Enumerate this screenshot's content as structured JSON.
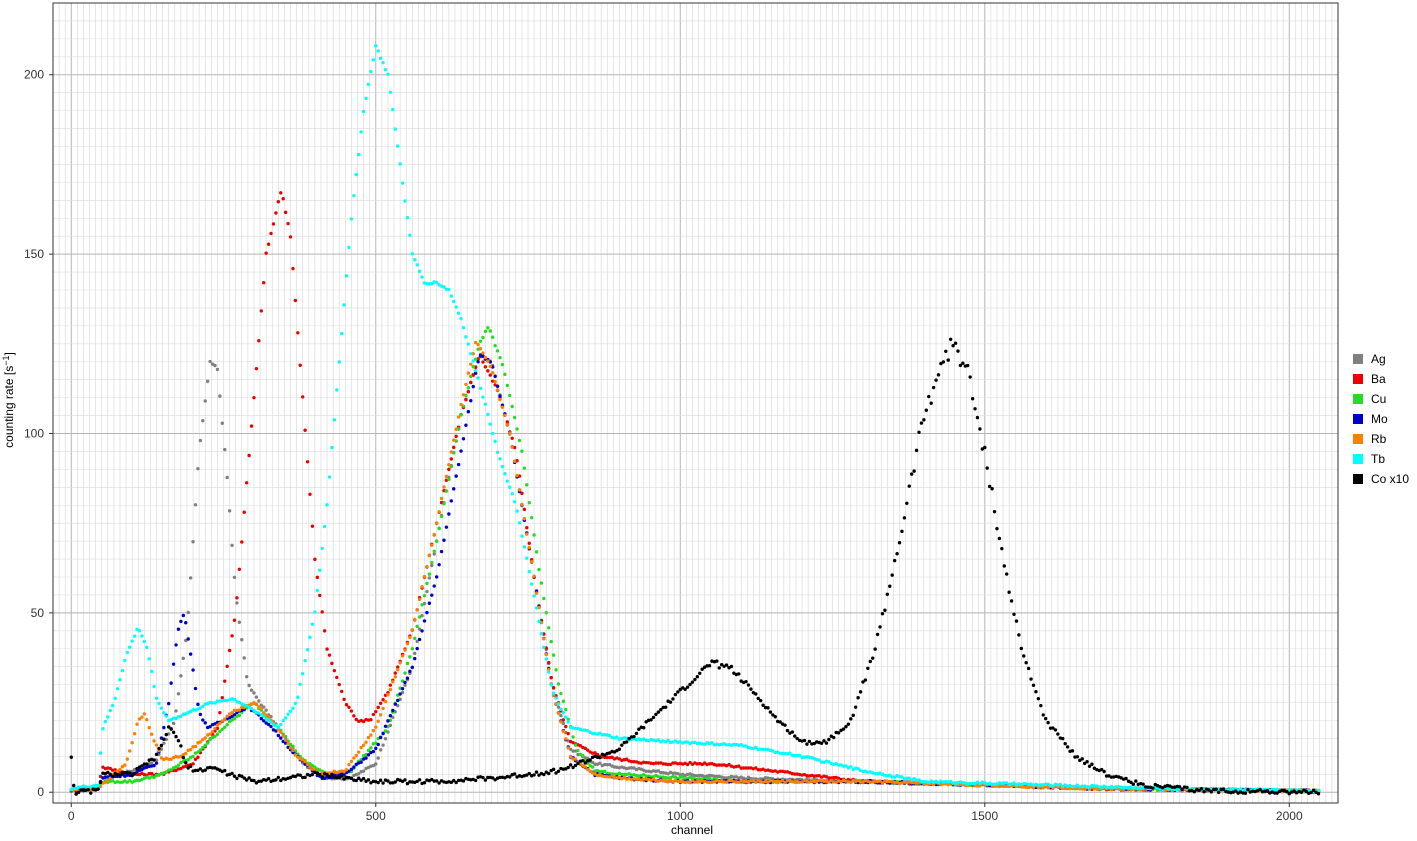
{
  "chart_data": {
    "type": "scatter",
    "title": "",
    "xlabel": "channel",
    "ylabel_main": "counting rate [s",
    "ylabel_sup": "−1",
    "ylabel_end": "]",
    "xlim": [
      -30,
      2080
    ],
    "ylim": [
      -3,
      220
    ],
    "x_ticks": [
      0,
      500,
      1000,
      1500,
      2000
    ],
    "y_ticks": [
      0,
      50,
      100,
      150,
      200
    ],
    "x_tick_labels": [
      "0",
      "500",
      "1000",
      "1500",
      "2000"
    ],
    "y_tick_labels": [
      "0",
      "50",
      "100",
      "150",
      "200"
    ],
    "x_minor_grid_step": 10,
    "y_minor_grid_step": 5,
    "grid": true,
    "legend_position": "right",
    "series": [
      {
        "name": "Ag",
        "color": "#808080",
        "points": [
          [
            0,
            0.5
          ],
          [
            45,
            1
          ],
          [
            50,
            4
          ],
          [
            100,
            6
          ],
          [
            140,
            9
          ],
          [
            170,
            20
          ],
          [
            190,
            45
          ],
          [
            210,
            95
          ],
          [
            228,
            120
          ],
          [
            240,
            118
          ],
          [
            255,
            90
          ],
          [
            270,
            55
          ],
          [
            290,
            30
          ],
          [
            310,
            25
          ],
          [
            340,
            18
          ],
          [
            380,
            8
          ],
          [
            420,
            4
          ],
          [
            460,
            4
          ],
          [
            500,
            8
          ],
          [
            560,
            35
          ],
          [
            600,
            70
          ],
          [
            640,
            105
          ],
          [
            670,
            122
          ],
          [
            690,
            120
          ],
          [
            720,
            100
          ],
          [
            760,
            60
          ],
          [
            790,
            30
          ],
          [
            820,
            12
          ],
          [
            860,
            8
          ],
          [
            900,
            7
          ],
          [
            1000,
            5
          ],
          [
            1100,
            4
          ],
          [
            1300,
            3
          ],
          [
            1500,
            2
          ],
          [
            1700,
            1
          ],
          [
            2050,
            0.3
          ]
        ]
      },
      {
        "name": "Ba",
        "color": "#ee0000",
        "points": [
          [
            0,
            0.5
          ],
          [
            45,
            1
          ],
          [
            50,
            7
          ],
          [
            100,
            5
          ],
          [
            150,
            5
          ],
          [
            200,
            8
          ],
          [
            240,
            18
          ],
          [
            270,
            50
          ],
          [
            300,
            110
          ],
          [
            320,
            150
          ],
          [
            345,
            168
          ],
          [
            360,
            155
          ],
          [
            380,
            110
          ],
          [
            400,
            65
          ],
          [
            420,
            40
          ],
          [
            450,
            25
          ],
          [
            470,
            20
          ],
          [
            490,
            20
          ],
          [
            520,
            28
          ],
          [
            560,
            45
          ],
          [
            600,
            75
          ],
          [
            640,
            105
          ],
          [
            670,
            122
          ],
          [
            700,
            112
          ],
          [
            730,
            95
          ],
          [
            760,
            60
          ],
          [
            790,
            30
          ],
          [
            820,
            14
          ],
          [
            870,
            10
          ],
          [
            950,
            8
          ],
          [
            1050,
            8
          ],
          [
            1150,
            6
          ],
          [
            1300,
            3
          ],
          [
            1500,
            2
          ],
          [
            1700,
            1
          ],
          [
            2050,
            0.3
          ]
        ]
      },
      {
        "name": "Cu",
        "color": "#22dd22",
        "points": [
          [
            0,
            0.5
          ],
          [
            45,
            1
          ],
          [
            50,
            3
          ],
          [
            100,
            3
          ],
          [
            150,
            5
          ],
          [
            200,
            10
          ],
          [
            250,
            18
          ],
          [
            300,
            25
          ],
          [
            340,
            18
          ],
          [
            380,
            9
          ],
          [
            420,
            5
          ],
          [
            460,
            6
          ],
          [
            520,
            18
          ],
          [
            560,
            40
          ],
          [
            600,
            70
          ],
          [
            640,
            105
          ],
          [
            670,
            125
          ],
          [
            685,
            130
          ],
          [
            710,
            118
          ],
          [
            740,
            95
          ],
          [
            770,
            60
          ],
          [
            800,
            30
          ],
          [
            830,
            12
          ],
          [
            860,
            6
          ],
          [
            900,
            5
          ],
          [
            1000,
            4
          ],
          [
            1100,
            3
          ],
          [
            1300,
            3
          ],
          [
            1500,
            2
          ],
          [
            1700,
            1
          ],
          [
            2050,
            0.3
          ]
        ]
      },
      {
        "name": "Mo",
        "color": "#0000cc",
        "points": [
          [
            0,
            0.5
          ],
          [
            45,
            1
          ],
          [
            50,
            4
          ],
          [
            100,
            5
          ],
          [
            140,
            8
          ],
          [
            160,
            25
          ],
          [
            175,
            45
          ],
          [
            185,
            50
          ],
          [
            195,
            40
          ],
          [
            210,
            22
          ],
          [
            225,
            18
          ],
          [
            250,
            20
          ],
          [
            290,
            24
          ],
          [
            330,
            18
          ],
          [
            370,
            10
          ],
          [
            410,
            4
          ],
          [
            450,
            5
          ],
          [
            500,
            12
          ],
          [
            560,
            35
          ],
          [
            600,
            60
          ],
          [
            640,
            95
          ],
          [
            670,
            122
          ],
          [
            690,
            120
          ],
          [
            720,
            100
          ],
          [
            760,
            60
          ],
          [
            790,
            28
          ],
          [
            820,
            10
          ],
          [
            860,
            5
          ],
          [
            900,
            4
          ],
          [
            1000,
            3
          ],
          [
            1100,
            3
          ],
          [
            1300,
            3
          ],
          [
            1500,
            2
          ],
          [
            1700,
            1
          ],
          [
            2050,
            0.3
          ]
        ]
      },
      {
        "name": "Rb",
        "color": "#ff8000",
        "points": [
          [
            0,
            0.5
          ],
          [
            45,
            1
          ],
          [
            50,
            2
          ],
          [
            90,
            8
          ],
          [
            110,
            20
          ],
          [
            120,
            22
          ],
          [
            135,
            15
          ],
          [
            150,
            9
          ],
          [
            180,
            10
          ],
          [
            220,
            15
          ],
          [
            260,
            22
          ],
          [
            300,
            25
          ],
          [
            330,
            20
          ],
          [
            370,
            10
          ],
          [
            410,
            5
          ],
          [
            450,
            6
          ],
          [
            500,
            18
          ],
          [
            560,
            45
          ],
          [
            600,
            75
          ],
          [
            640,
            108
          ],
          [
            665,
            126
          ],
          [
            690,
            118
          ],
          [
            720,
            100
          ],
          [
            760,
            60
          ],
          [
            790,
            28
          ],
          [
            820,
            10
          ],
          [
            860,
            5
          ],
          [
            900,
            4
          ],
          [
            1000,
            3
          ],
          [
            1100,
            3
          ],
          [
            1300,
            3
          ],
          [
            1500,
            2
          ],
          [
            1700,
            1
          ],
          [
            2050,
            0.3
          ]
        ]
      },
      {
        "name": "Tb",
        "color": "#00ffff",
        "points": [
          [
            0,
            1
          ],
          [
            45,
            2
          ],
          [
            50,
            17
          ],
          [
            70,
            25
          ],
          [
            90,
            38
          ],
          [
            110,
            46
          ],
          [
            125,
            40
          ],
          [
            140,
            26
          ],
          [
            160,
            20
          ],
          [
            190,
            22
          ],
          [
            230,
            25
          ],
          [
            265,
            26
          ],
          [
            300,
            23
          ],
          [
            340,
            18
          ],
          [
            370,
            25
          ],
          [
            400,
            50
          ],
          [
            420,
            80
          ],
          [
            440,
            120
          ],
          [
            460,
            160
          ],
          [
            480,
            190
          ],
          [
            500,
            208
          ],
          [
            520,
            200
          ],
          [
            540,
            175
          ],
          [
            560,
            150
          ],
          [
            580,
            142
          ],
          [
            600,
            142
          ],
          [
            620,
            140
          ],
          [
            640,
            132
          ],
          [
            660,
            120
          ],
          [
            680,
            108
          ],
          [
            700,
            95
          ],
          [
            730,
            80
          ],
          [
            760,
            55
          ],
          [
            790,
            28
          ],
          [
            820,
            18
          ],
          [
            900,
            15
          ],
          [
            1000,
            14
          ],
          [
            1100,
            13
          ],
          [
            1200,
            10
          ],
          [
            1300,
            6
          ],
          [
            1400,
            3
          ],
          [
            1600,
            2
          ],
          [
            1800,
            1
          ],
          [
            2050,
            0.3
          ]
        ]
      },
      {
        "name": "Co x10",
        "color": "#000000",
        "points": [
          [
            0,
            10
          ],
          [
            5,
            0
          ],
          [
            45,
            0.5
          ],
          [
            50,
            5
          ],
          [
            100,
            5
          ],
          [
            140,
            10
          ],
          [
            160,
            18
          ],
          [
            175,
            15
          ],
          [
            190,
            7
          ],
          [
            210,
            6
          ],
          [
            230,
            7
          ],
          [
            260,
            5
          ],
          [
            300,
            3
          ],
          [
            400,
            5
          ],
          [
            500,
            3
          ],
          [
            600,
            3
          ],
          [
            700,
            4
          ],
          [
            800,
            6
          ],
          [
            900,
            12
          ],
          [
            950,
            20
          ],
          [
            1000,
            28
          ],
          [
            1050,
            36
          ],
          [
            1080,
            35
          ],
          [
            1120,
            28
          ],
          [
            1160,
            20
          ],
          [
            1200,
            14
          ],
          [
            1240,
            14
          ],
          [
            1280,
            20
          ],
          [
            1320,
            40
          ],
          [
            1360,
            70
          ],
          [
            1400,
            105
          ],
          [
            1430,
            120
          ],
          [
            1450,
            125
          ],
          [
            1470,
            118
          ],
          [
            1500,
            95
          ],
          [
            1530,
            65
          ],
          [
            1560,
            40
          ],
          [
            1600,
            20
          ],
          [
            1650,
            10
          ],
          [
            1700,
            5
          ],
          [
            1760,
            2
          ],
          [
            1850,
            0.5
          ],
          [
            2050,
            0
          ]
        ]
      }
    ]
  }
}
